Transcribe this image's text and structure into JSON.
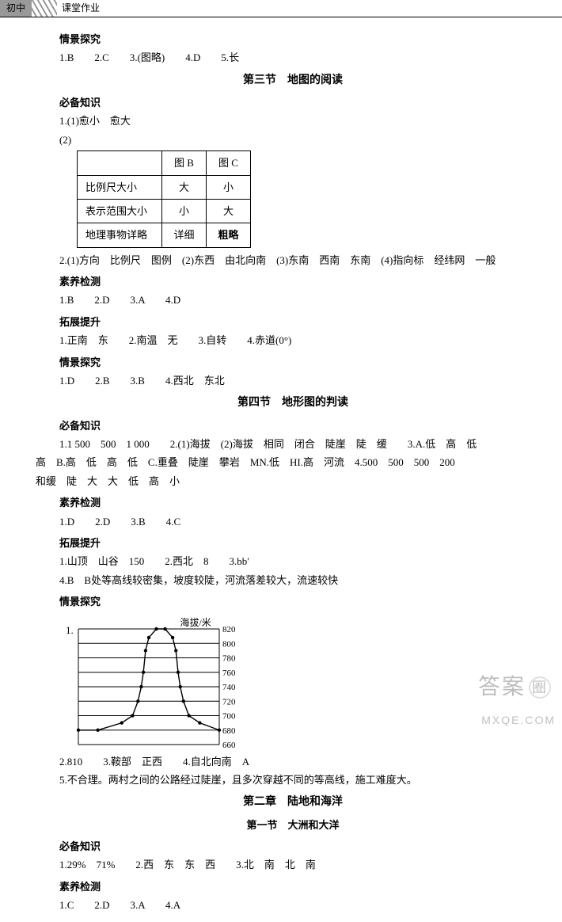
{
  "header": {
    "left": "初中",
    "right": "课堂作业"
  },
  "sections": [
    {
      "heading": "情景探究",
      "lines": [
        "1.B　　2.C　　3.(图略)　　4.D　　5.长"
      ]
    },
    {
      "center": "第三节　地图的阅读"
    },
    {
      "heading": "必备知识",
      "lines": [
        "1.(1)愈小　愈大",
        "(2)"
      ]
    }
  ],
  "table1": {
    "header": [
      "",
      "图 B",
      "图 C"
    ],
    "rows": [
      [
        "比例尺大小",
        "大",
        "小"
      ],
      [
        "表示范围大小",
        "小",
        "大"
      ],
      [
        "地理事物详略",
        "详细",
        "粗略"
      ]
    ],
    "bold_cells": [
      [
        2,
        2
      ]
    ]
  },
  "after_table": [
    "2.(1)方向　比例尺　图例　(2)东西　由北向南　(3)东南　西南　东南　(4)指向标　经纬网　一般"
  ],
  "blocks": [
    {
      "heading": "素养检测",
      "lines": [
        "1.B　　2.D　　3.A　　4.D"
      ]
    },
    {
      "heading": "拓展提升",
      "lines": [
        "1.正南　东　　2.南温　无　　3.自转　　4.赤道(0°)"
      ]
    },
    {
      "heading": "情景探究",
      "lines": [
        "1.D　　2.B　　3.B　　4.西北　东北"
      ]
    },
    {
      "center": "第四节　地形图的判读"
    },
    {
      "heading": "必备知识",
      "lines": [
        "1.1 500　500　1 000　　2.(1)海拔　(2)海拔　相同　闭合　陡崖　陡　缓　　3.A.低　高　低",
        "高　B.高　低　高　低　C.重叠　陡崖　攀岩　MN.低　HI.高　河流　4.500　500　500　200",
        "和缓　陡　大　大　低　高　小"
      ],
      "negIndent": true
    },
    {
      "heading": "素养检测",
      "lines": [
        "1.D　　2.D　　3.B　　4.C"
      ]
    },
    {
      "heading": "拓展提升",
      "lines": [
        "1.山顶　山谷　150　　2.西北　8　　3.bb′",
        "4.B　B处等高线较密集，坡度较陡，河流落差较大，流速较快"
      ]
    },
    {
      "heading": "情景探究"
    }
  ],
  "chart": {
    "num": "1.",
    "title": "海拔/米",
    "yticks": [
      820,
      800,
      780,
      760,
      740,
      720,
      700,
      680,
      660
    ],
    "width": 180,
    "height": 150,
    "xmin": 10,
    "xmax": 140,
    "series": [
      {
        "x": 10,
        "y": 680
      },
      {
        "x": 28,
        "y": 680
      },
      {
        "x": 50,
        "y": 690
      },
      {
        "x": 60,
        "y": 700
      },
      {
        "x": 65,
        "y": 720
      },
      {
        "x": 68,
        "y": 740
      },
      {
        "x": 70,
        "y": 760
      },
      {
        "x": 72,
        "y": 790
      },
      {
        "x": 75,
        "y": 808
      },
      {
        "x": 82,
        "y": 820
      },
      {
        "x": 90,
        "y": 820
      },
      {
        "x": 97,
        "y": 808
      },
      {
        "x": 100,
        "y": 790
      },
      {
        "x": 102,
        "y": 760
      },
      {
        "x": 104,
        "y": 740
      },
      {
        "x": 107,
        "y": 720
      },
      {
        "x": 112,
        "y": 700
      },
      {
        "x": 122,
        "y": 690
      },
      {
        "x": 140,
        "y": 680
      }
    ],
    "line_color": "#000000",
    "grid_color": "#000000",
    "bg_color": "#ffffff"
  },
  "after_chart": [
    "2.810　　3.鞍部　正西　　4.自北向南　A",
    "5.不合理。两村之间的公路经过陡崖，且多次穿越不同的等高线，施工难度大。"
  ],
  "chapter2": {
    "title": "第二章　陆地和海洋",
    "sub": "第一节　大洲和大洋"
  },
  "blocks2": [
    {
      "heading": "必备知识",
      "lines": [
        "1.29%　71%　　2.西　东　东　西　　3.北　南　北　南"
      ]
    },
    {
      "heading": "素养检测",
      "lines": [
        "1.C　　2.D　　3.A　　4.A"
      ]
    }
  ],
  "watermark": {
    "main": "答案",
    "circle": "圈",
    "url": "MXQE.COM"
  }
}
